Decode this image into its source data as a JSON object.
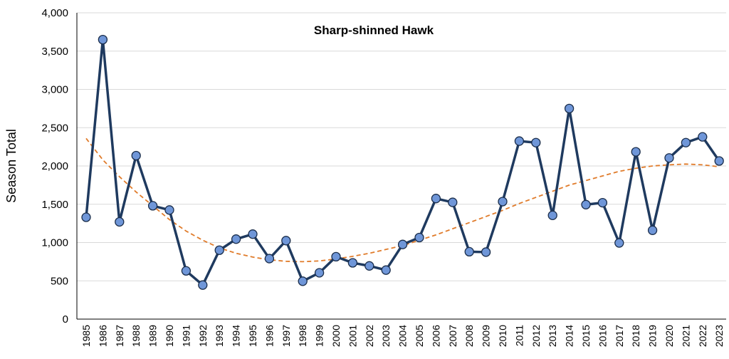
{
  "chart_data": {
    "type": "line",
    "title": "Sharp-shinned Hawk",
    "xlabel": "",
    "ylabel": "Season Total",
    "ylim": [
      0,
      4000
    ],
    "y_ticks": [
      "0",
      "500",
      "1,000",
      "1,500",
      "2,000",
      "2,500",
      "3,000",
      "3,500",
      "4,000"
    ],
    "y_tick_values": [
      0,
      500,
      1000,
      1500,
      2000,
      2500,
      3000,
      3500,
      4000
    ],
    "grid": "horizontal",
    "legend": "none",
    "categories": [
      "1985",
      "1986",
      "1987",
      "1988",
      "1989",
      "1990",
      "1991",
      "1992",
      "1993",
      "1994",
      "1995",
      "1996",
      "1997",
      "1998",
      "1999",
      "2000",
      "2001",
      "2002",
      "2003",
      "2004",
      "2005",
      "2006",
      "2007",
      "2008",
      "2009",
      "2010",
      "2011",
      "2012",
      "2013",
      "2014",
      "2015",
      "2016",
      "2017",
      "2018",
      "2019",
      "2020",
      "2021",
      "2022",
      "2023"
    ],
    "series": [
      {
        "values": [
          1330,
          3650,
          1270,
          2135,
          1480,
          1425,
          630,
          445,
          900,
          1045,
          1110,
          790,
          1025,
          495,
          605,
          815,
          735,
          695,
          640,
          975,
          1065,
          1575,
          1525,
          880,
          875,
          1535,
          2325,
          2305,
          1355,
          2750,
          1495,
          1520,
          995,
          2185,
          1160,
          2105,
          2305,
          2380,
          2065
        ],
        "color": "#1f3a5f",
        "marker_color": "#6f96d8"
      },
      {
        "type": "trendline",
        "values": [
          2360,
          2080,
          1860,
          1660,
          1480,
          1300,
          1150,
          1030,
          930,
          860,
          810,
          775,
          755,
          750,
          760,
          785,
          820,
          860,
          910,
          960,
          1030,
          1100,
          1180,
          1260,
          1340,
          1420,
          1510,
          1590,
          1670,
          1750,
          1810,
          1870,
          1930,
          1970,
          2000,
          2015,
          2025,
          2015,
          1990
        ],
        "color": "#e07b2a",
        "dashed": true
      }
    ]
  }
}
